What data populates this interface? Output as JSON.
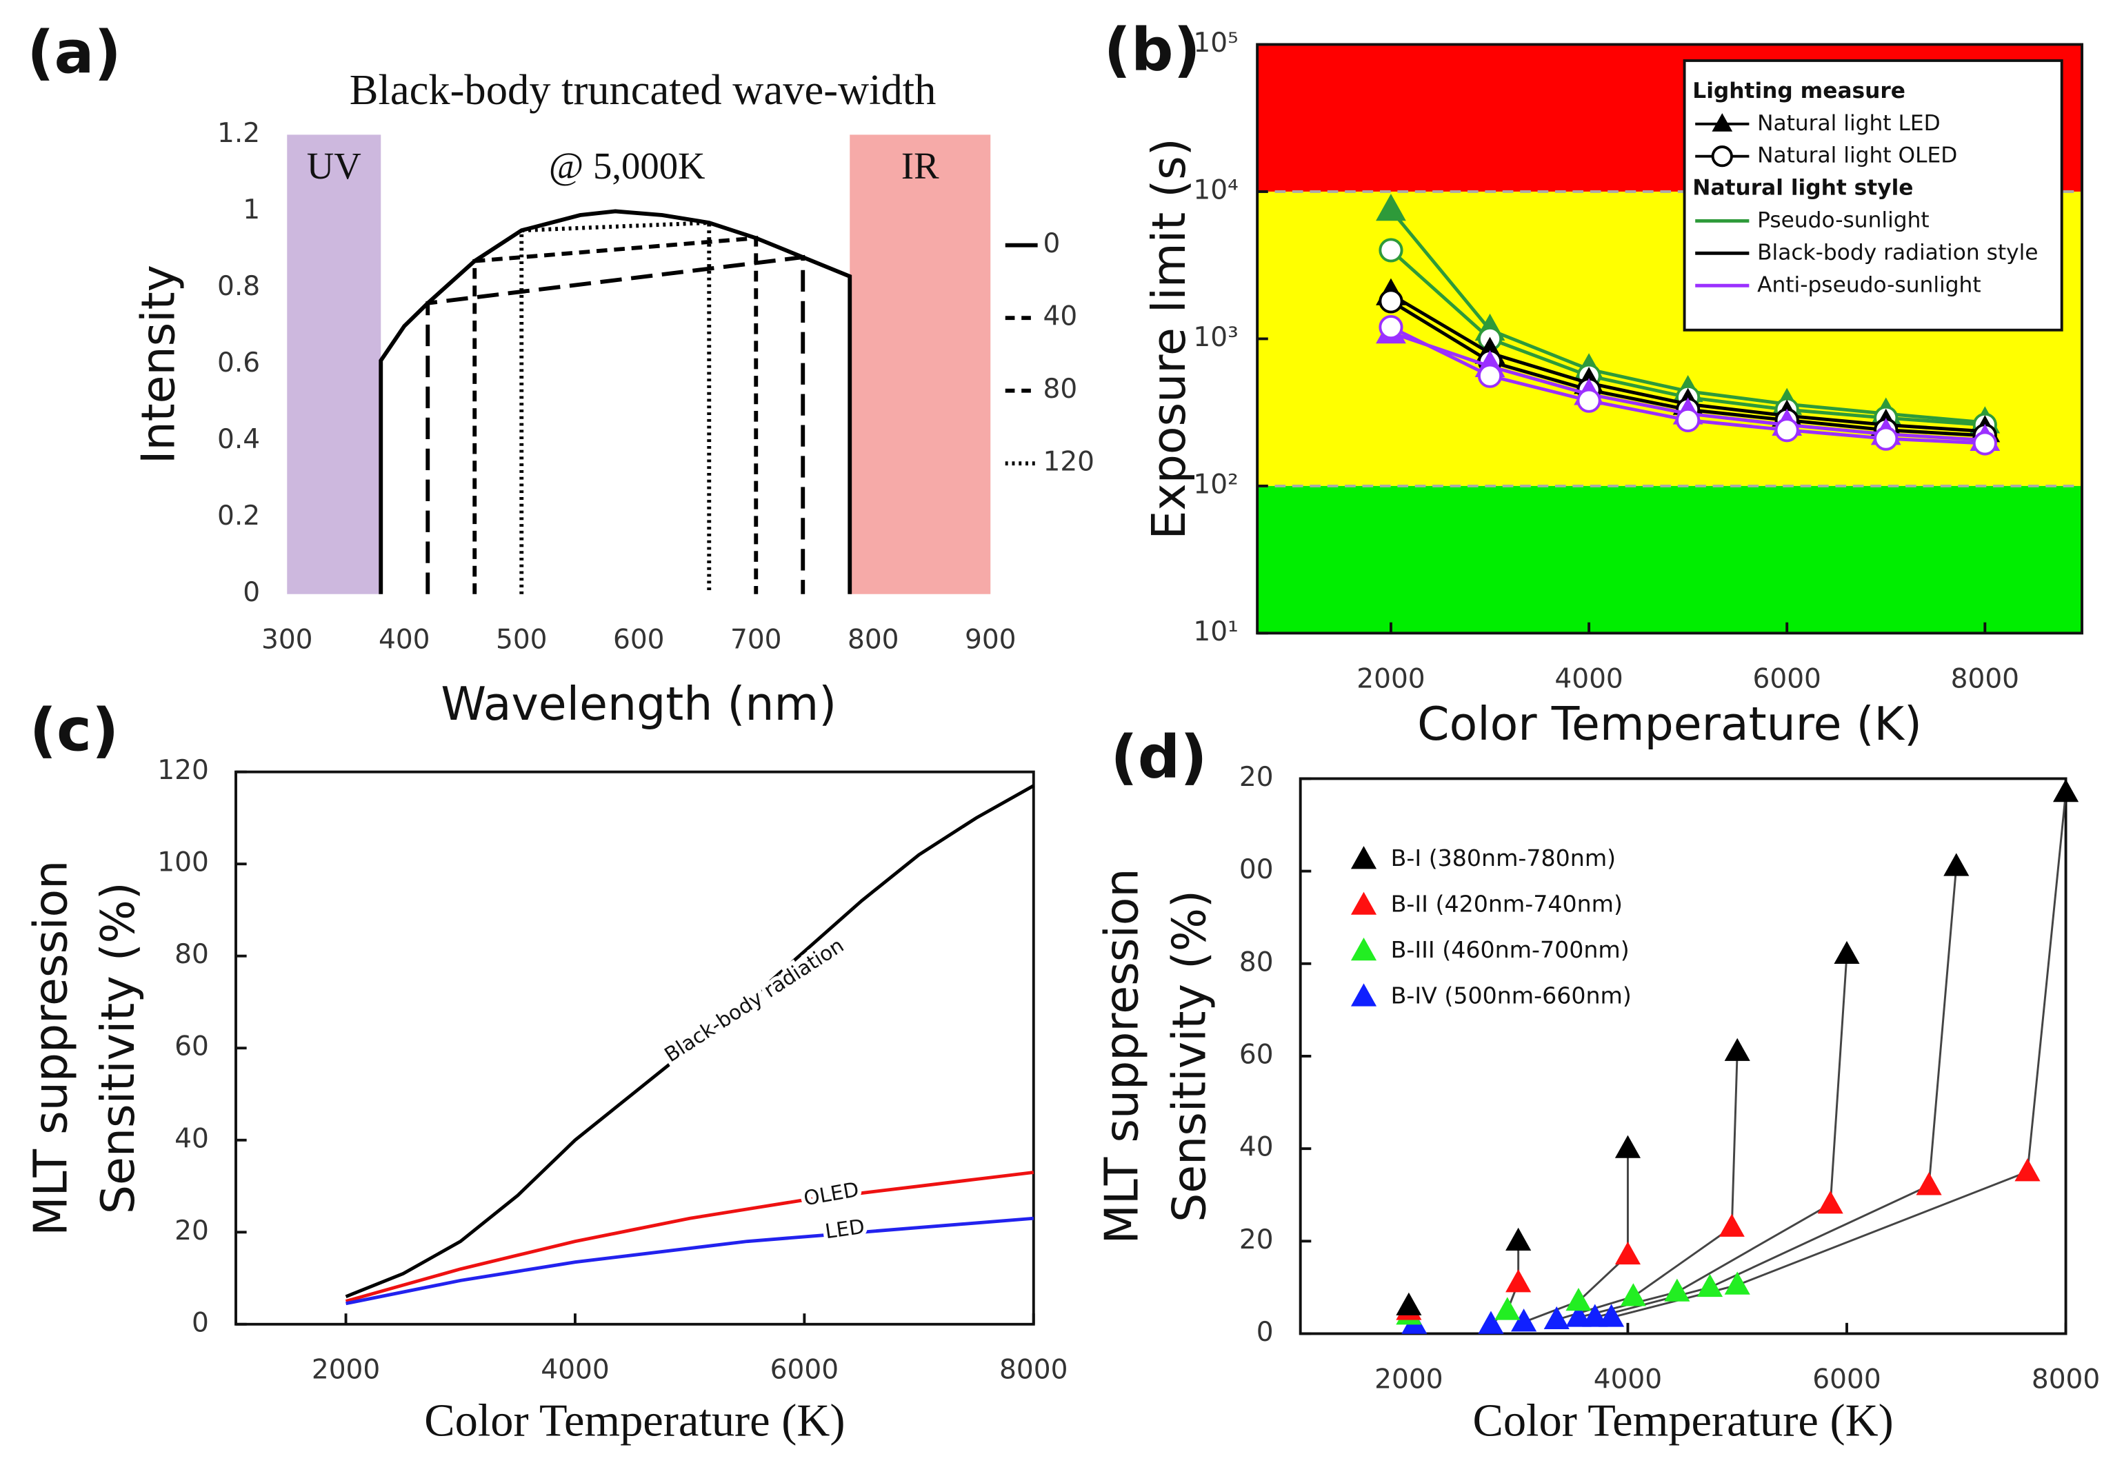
{
  "chart_data": [
    {
      "type": "line",
      "panel_label": "(a)",
      "title": "Black-body truncated wave-width",
      "annotation": "@ 5,000K",
      "xlabel": "Wavelength (nm)",
      "ylabel": "Intensity",
      "xlim": [
        300,
        900
      ],
      "ylim": [
        0,
        1.2
      ],
      "xticks": [
        300,
        400,
        500,
        600,
        700,
        800,
        900
      ],
      "yticks": [
        0,
        0.2,
        0.4,
        0.6,
        0.8,
        1,
        1.2
      ],
      "regions": [
        {
          "label": "UV",
          "range": [
            300,
            380
          ],
          "color": "#cdb8de"
        },
        {
          "label": "IR",
          "range": [
            780,
            900
          ],
          "color": "#f6aaa8"
        }
      ],
      "series": [
        {
          "name": "0",
          "color": "#000000",
          "dash": "none",
          "x": [
            380,
            380,
            400,
            420,
            460,
            500,
            550,
            580,
            620,
            660,
            700,
            740,
            780,
            780
          ],
          "values": [
            0,
            0.61,
            0.7,
            0.76,
            0.87,
            0.95,
            0.99,
            1.0,
            0.99,
            0.97,
            0.93,
            0.88,
            0.83,
            0
          ]
        },
        {
          "name": "40",
          "color": "#000000",
          "dash": "16 7",
          "x": [
            420,
            420,
            740,
            740
          ],
          "values": [
            0,
            0.76,
            0.88,
            0
          ]
        },
        {
          "name": "80",
          "color": "#000000",
          "dash": "8 5",
          "x": [
            460,
            460,
            700,
            700
          ],
          "values": [
            0,
            0.87,
            0.93,
            0
          ]
        },
        {
          "name": "120",
          "color": "#000000",
          "dash": "2 3",
          "x": [
            500,
            500,
            660,
            660
          ],
          "values": [
            0,
            0.95,
            0.97,
            0
          ]
        }
      ]
    },
    {
      "type": "line",
      "panel_label": "(b)",
      "xlabel": "Color Temperature (K)",
      "ylabel": "Exposure limit (s)",
      "log_y": true,
      "xlim": [
        650,
        8980
      ],
      "ylim": [
        10,
        100000
      ],
      "xticks": [
        2000,
        4000,
        6000,
        8000
      ],
      "yticks": [
        {
          "value": 10,
          "label": "10¹"
        },
        {
          "value": 100,
          "label": "10²"
        },
        {
          "value": 1000,
          "label": "10³"
        },
        {
          "value": 10000,
          "label": "10⁴"
        },
        {
          "value": 100000,
          "label": "10⁵"
        }
      ],
      "bands": [
        {
          "range": [
            10000,
            100000
          ],
          "color": "#ff0000"
        },
        {
          "range": [
            100,
            10000
          ],
          "color": "#ffff00"
        },
        {
          "range": [
            10,
            100
          ],
          "color": "#00ee00"
        }
      ],
      "x": [
        2000,
        3000,
        4000,
        5000,
        6000,
        7000,
        8000
      ],
      "legend": {
        "measure_title": "Lighting measure",
        "measures": [
          {
            "label": "Natural light LED",
            "marker": "triangle"
          },
          {
            "label": "Natural light OLED",
            "marker": "circle"
          }
        ],
        "style_title": "Natural light style",
        "styles": [
          {
            "label": "Pseudo-sunlight",
            "color": "#2e9a3a"
          },
          {
            "label": "Black-body radiation style",
            "color": "#000000"
          },
          {
            "label": "Anti-pseudo-sunlight",
            "color": "#9b30ff"
          }
        ]
      },
      "series": [
        {
          "marker": "triangle",
          "color": "#2e9a3a",
          "values": [
            7500,
            1150,
            620,
            440,
            360,
            310,
            270
          ]
        },
        {
          "marker": "circle",
          "color": "#2e9a3a",
          "values": [
            4000,
            1000,
            560,
            400,
            330,
            290,
            260
          ]
        },
        {
          "marker": "triangle",
          "color": "#000000",
          "values": [
            2000,
            800,
            500,
            360,
            300,
            260,
            235
          ]
        },
        {
          "marker": "circle",
          "color": "#000000",
          "values": [
            1800,
            700,
            450,
            330,
            280,
            240,
            220
          ]
        },
        {
          "marker": "triangle",
          "color": "#9b30ff",
          "values": [
            1100,
            650,
            420,
            310,
            260,
            225,
            205
          ]
        },
        {
          "marker": "circle",
          "color": "#9b30ff",
          "values": [
            1200,
            560,
            380,
            280,
            240,
            210,
            195
          ]
        }
      ]
    },
    {
      "type": "line",
      "panel_label": "(c)",
      "xlabel": "Color Temperature (K)",
      "ylabel": [
        "MLT suppression",
        "Sensitivity (%)"
      ],
      "xlim": [
        1040,
        8000
      ],
      "ylim": [
        0,
        120
      ],
      "xticks": [
        2000,
        4000,
        6000,
        8000
      ],
      "yticks": [
        0,
        20,
        40,
        60,
        80,
        100,
        120
      ],
      "x": [
        2000,
        2500,
        3000,
        3500,
        4000,
        4500,
        5000,
        5500,
        6000,
        6500,
        7000,
        7500,
        8000
      ],
      "series": [
        {
          "name": "Black-body radiation",
          "color": "#000000",
          "values": [
            6,
            11,
            18,
            28,
            40,
            50,
            60,
            70,
            81,
            92,
            102,
            110,
            117
          ]
        },
        {
          "name": "OLED",
          "color": "#ee1111",
          "values": [
            5,
            8.5,
            12,
            15,
            18,
            20.5,
            23,
            25,
            27,
            28.5,
            30,
            31.5,
            33
          ]
        },
        {
          "name": "LED",
          "color": "#2222ee",
          "values": [
            4.5,
            7,
            9.5,
            11.5,
            13.5,
            15,
            16.5,
            18,
            19,
            20,
            21,
            22,
            23
          ]
        }
      ]
    },
    {
      "type": "scatter",
      "panel_label": "(d)",
      "xlabel": "Color Temperature (K)",
      "ylabel": [
        "MLT suppression",
        "Sensitivity (%)"
      ],
      "xlim": [
        1010,
        8000
      ],
      "ylim": [
        0,
        120
      ],
      "xticks": [
        2000,
        4000,
        6000,
        8000
      ],
      "yticks": [
        0,
        20,
        40,
        60,
        80,
        {
          "value": 100,
          "label": "00"
        },
        {
          "value": 120,
          "label": "20"
        }
      ],
      "series": [
        {
          "name": "B-IV (500nm-660nm)",
          "color": "#1020ff",
          "x": [
            2050,
            2750,
            3050,
            3350,
            3550,
            3700,
            3850
          ],
          "values": [
            2,
            2,
            2.5,
            3,
            3.5,
            3.5,
            3.5
          ]
        },
        {
          "name": "B-III (460nm-700nm)",
          "color": "#22ee22",
          "x": [
            2000,
            2900,
            3550,
            4050,
            4450,
            4750,
            5000
          ],
          "values": [
            4,
            5,
            7,
            8,
            9,
            10,
            10.5
          ]
        },
        {
          "name": "B-II  (420nm-740nm)",
          "color": "#ff1010",
          "x": [
            2000,
            3000,
            4000,
            4950,
            5850,
            6750,
            7650
          ],
          "values": [
            5,
            11,
            17,
            23,
            28,
            32,
            35
          ]
        },
        {
          "name": "B-I   (380nm-780nm)",
          "color": "#000000",
          "x": [
            2000,
            3000,
            4000,
            5000,
            6000,
            7000,
            8000
          ],
          "values": [
            6,
            20,
            40,
            61,
            82,
            101,
            117
          ]
        }
      ]
    }
  ]
}
